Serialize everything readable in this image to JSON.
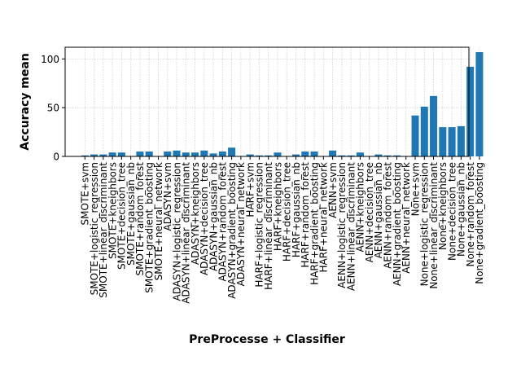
{
  "chart_data": {
    "type": "bar",
    "title": "",
    "xlabel": "PreProcesse + Classifier",
    "ylabel": "Accuracy mean",
    "ylim": [
      0,
      112
    ],
    "yticks": [
      0,
      50,
      100
    ],
    "grid": true,
    "bar_color": "#1f77b4",
    "categories": [
      "SMOTE+svm",
      "SMOTE+logistic_regression",
      "SMOTE+linear_discriminant",
      "SMOTE+kneighbors",
      "SMOTE+decision_tree",
      "SMOTE+gaussian_nb",
      "SMOTE+random_forest",
      "SMOTE+gradient_boosting",
      "SMOTE+neural_network",
      "ADASYN+svm",
      "ADASYN+logistic_regression",
      "ADASYN+linear_discriminant",
      "ADASYN+kneighbors",
      "ADASYN+decision_tree",
      "ADASYN+gaussian_nb",
      "ADASYN+random_forest",
      "ADASYN+gradient_boosting",
      "ADASYN+neural_network",
      "HARF+svm",
      "HARF+logistic_regression",
      "HARF+linear_discriminant",
      "HARF+kneighbors",
      "HARF+decision_tree",
      "HARF+gaussian_nb",
      "HARF+random_forest",
      "HARF+gradient_boosting",
      "HARF+neural_network",
      "AENN+svm",
      "AENN+logistic_regression",
      "AENN+linear_discriminant",
      "AENN+kneighbors",
      "AENN+decision_tree",
      "AENN+gaussian_nb",
      "AENN+random_forest",
      "AENN+gradient_boosting",
      "AENN+neural_network",
      "None+svm",
      "None+logistic_regression",
      "None+linear_discriminant",
      "None+kneighbors",
      "None+decision_tree",
      "None+gaussian_nb",
      "None+random_forest",
      "None+gradient_boosting"
    ],
    "values": [
      1,
      2,
      2,
      4,
      4,
      0,
      5,
      5,
      0,
      5,
      6,
      4,
      4,
      6,
      3,
      5,
      9,
      0,
      2,
      1,
      1,
      4,
      0,
      2,
      5,
      5,
      0,
      6,
      1,
      1,
      4,
      0,
      2,
      1,
      1,
      0,
      42,
      51,
      62,
      30,
      30,
      31,
      92,
      107
    ]
  }
}
